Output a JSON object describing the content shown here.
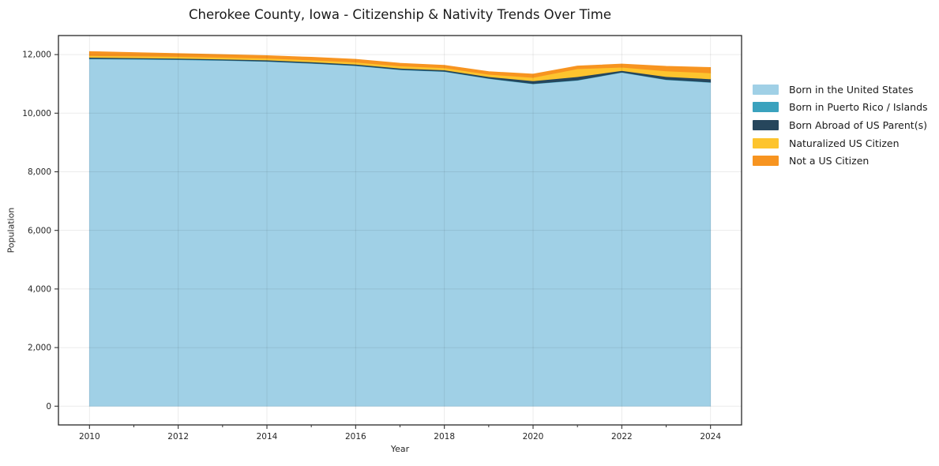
{
  "figure": {
    "title": "Cherokee County, Iowa - Citizenship & Nativity Trends Over Time"
  },
  "chart_data": {
    "type": "area",
    "stacked": true,
    "title": "Cherokee County, Iowa - Citizenship & Nativity Trends Over Time",
    "xlabel": "Year",
    "ylabel": "Population",
    "x": [
      2010,
      2011,
      2012,
      2013,
      2014,
      2015,
      2016,
      2017,
      2018,
      2019,
      2020,
      2021,
      2022,
      2023,
      2024
    ],
    "series": [
      {
        "name": "Born in the United States",
        "color": "#a0d0e6",
        "values": [
          11850,
          11840,
          11825,
          11800,
          11765,
          11700,
          11620,
          11480,
          11420,
          11180,
          11000,
          11120,
          11390,
          11140,
          11050
        ]
      },
      {
        "name": "Born in Puerto Rico / Islands",
        "color": "#3aa2be",
        "values": [
          15,
          15,
          12,
          12,
          10,
          10,
          10,
          10,
          10,
          10,
          10,
          10,
          10,
          10,
          10
        ]
      },
      {
        "name": "Born Abroad of US Parent(s)",
        "color": "#26465c",
        "values": [
          40,
          35,
          35,
          35,
          40,
          40,
          40,
          45,
          45,
          55,
          95,
          115,
          55,
          100,
          110
        ]
      },
      {
        "name": "Naturalized US Citizen",
        "color": "#fdc42e",
        "values": [
          60,
          60,
          60,
          60,
          60,
          65,
          70,
          75,
          75,
          80,
          115,
          270,
          115,
          190,
          205
        ]
      },
      {
        "name": "Not a US Citizen",
        "color": "#f79420",
        "values": [
          140,
          120,
          105,
          95,
          90,
          95,
          100,
          95,
          85,
          95,
          115,
          95,
          110,
          160,
          185
        ]
      }
    ],
    "xlim": [
      2009.3,
      2024.7
    ],
    "ylim": [
      -640,
      12650
    ],
    "xticks": {
      "major": [
        2010,
        2012,
        2014,
        2016,
        2018,
        2020,
        2022,
        2024
      ],
      "minor": [
        2011,
        2013,
        2015,
        2017,
        2019,
        2021,
        2023
      ],
      "labels": [
        "2010",
        "2012",
        "2014",
        "2016",
        "2018",
        "2020",
        "2022",
        "2024"
      ]
    },
    "yticks": {
      "values": [
        0,
        2000,
        4000,
        6000,
        8000,
        10000,
        12000
      ],
      "labels": [
        "0",
        "2,000",
        "4,000",
        "6,000",
        "8,000",
        "10,000",
        "12,000"
      ]
    },
    "grid": true,
    "legend_position": "right"
  },
  "colors": {
    "axis": "#262626",
    "grid_over_fill": "rgba(0,0,0,0.08)",
    "tick": "#333333",
    "title": "#1a1a1a",
    "background": "#ffffff"
  }
}
